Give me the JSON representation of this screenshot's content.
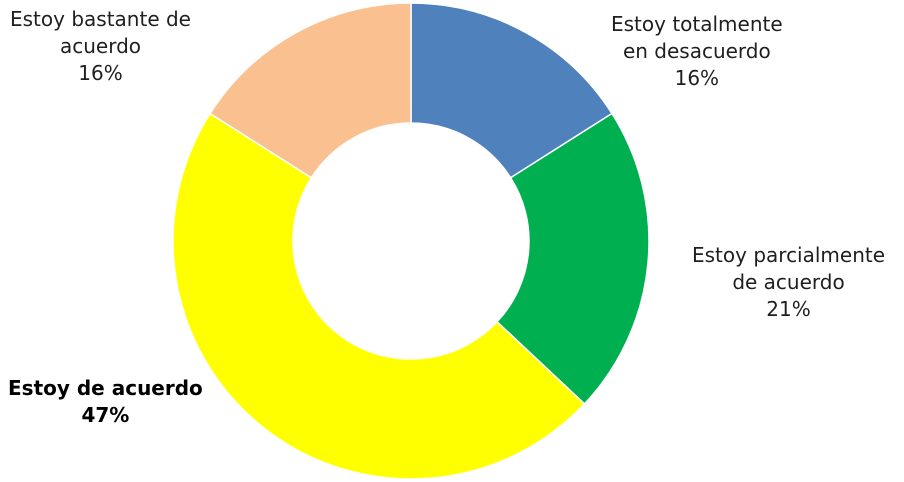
{
  "chart_data": {
    "type": "pie",
    "subtype": "donut",
    "slices": [
      {
        "label_lines": [
          "Estoy totalmente",
          "en desacuerdo"
        ],
        "value": 16,
        "value_label": "16%",
        "color": "#4f81bd",
        "bold": false
      },
      {
        "label_lines": [
          "Estoy parcialmente",
          "de acuerdo"
        ],
        "value": 21,
        "value_label": "21%",
        "color": "#00b050",
        "bold": false
      },
      {
        "label_lines": [
          "Estoy de acuerdo"
        ],
        "value": 47,
        "value_label": "47%",
        "color": "#ffff00",
        "bold": true
      },
      {
        "label_lines": [
          "Estoy bastante de",
          "acuerdo"
        ],
        "value": 16,
        "value_label": "16%",
        "color": "#fac090",
        "bold": false
      }
    ]
  }
}
